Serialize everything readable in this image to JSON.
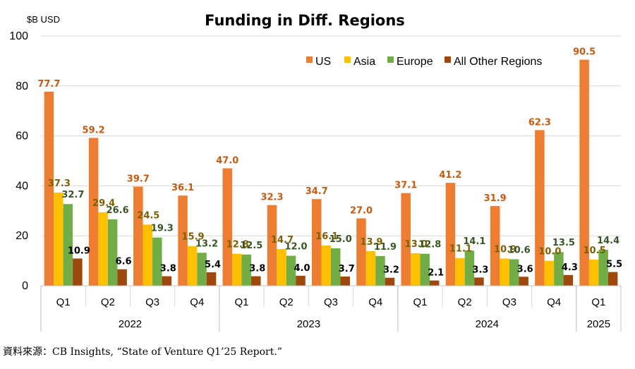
{
  "chart_data": {
    "type": "bar",
    "title": "Funding in Diff. Regions",
    "unit": "$B USD",
    "ylim": [
      0,
      100
    ],
    "yticks": [
      0,
      20,
      40,
      60,
      80,
      100
    ],
    "grid": true,
    "legend_position": "top-right",
    "years": [
      {
        "label": "2022",
        "quarters": [
          "Q1",
          "Q2",
          "Q3",
          "Q4"
        ]
      },
      {
        "label": "2023",
        "quarters": [
          "Q1",
          "Q2",
          "Q3",
          "Q4"
        ]
      },
      {
        "label": "2024",
        "quarters": [
          "Q1",
          "Q2",
          "Q3",
          "Q4"
        ]
      },
      {
        "label": "2025",
        "quarters": [
          "Q1"
        ]
      }
    ],
    "series": [
      {
        "name": "US",
        "color": "#ED7D31",
        "label_color": "#C55A11",
        "values": [
          77.7,
          59.2,
          39.7,
          36.1,
          47.0,
          32.3,
          34.7,
          27.0,
          37.1,
          41.2,
          31.9,
          62.3,
          90.5
        ],
        "labels": [
          "77.7",
          "59.2",
          "39.7",
          "36.1",
          "47.0",
          "32.3",
          "34.7",
          "27.0",
          "37.1",
          "41.2",
          "31.9",
          "62.3",
          "90.5"
        ]
      },
      {
        "name": "Asia",
        "color": "#FFC000",
        "label_color": "#7F6000",
        "values": [
          37.3,
          29.4,
          24.5,
          15.9,
          12.8,
          14.7,
          16.1,
          13.9,
          13.0,
          11.1,
          10.9,
          10.0,
          10.5
        ],
        "labels": [
          "37.3",
          "29.4",
          "24.5",
          "15.9",
          "12.8",
          "14.7",
          "16.1",
          "13.9",
          "13.0",
          "11.1",
          "10.9",
          "10.0",
          "10.5"
        ]
      },
      {
        "name": "Europe",
        "color": "#70AD47",
        "label_color": "#375623",
        "values": [
          32.7,
          26.6,
          19.3,
          13.2,
          12.5,
          12.0,
          15.0,
          11.9,
          12.8,
          14.1,
          10.6,
          13.5,
          14.4
        ],
        "labels": [
          "32.7",
          "26.6",
          "19.3",
          "13.2",
          "12.5",
          "12.0",
          "15.0",
          "11.9",
          "12.8",
          "14.1",
          "10.6",
          "13.5",
          "14.4"
        ]
      },
      {
        "name": "All Other Regions",
        "color": "#9E480E",
        "label_color": "#000000",
        "values": [
          10.9,
          6.6,
          3.8,
          5.4,
          3.8,
          4.0,
          3.7,
          3.2,
          2.1,
          3.3,
          3.6,
          4.3,
          5.5
        ],
        "labels": [
          "10.9",
          "6.6",
          "3.8",
          "5.4",
          "3.8",
          "4.0",
          "3.7",
          "3.2",
          "2.1",
          "3.3",
          "3.6",
          "4.3",
          "5.5"
        ]
      }
    ]
  },
  "source_text": "資料來源：CB Insights, “State of Venture Q1’25 Report.”"
}
